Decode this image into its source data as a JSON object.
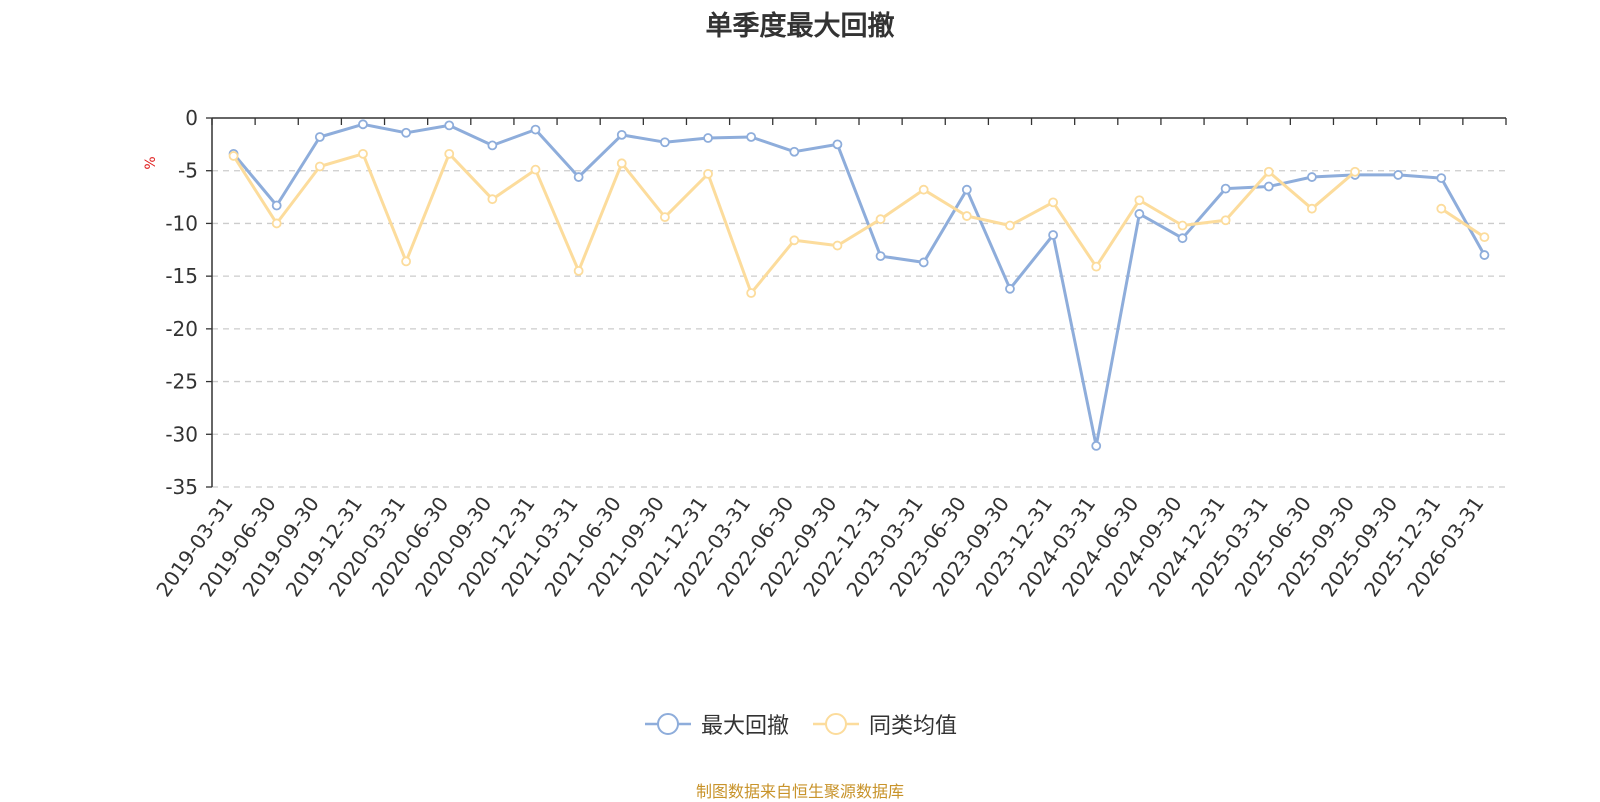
{
  "chart_data": {
    "type": "line",
    "title": "单季度最大回撤",
    "ylabel": "%",
    "ylim": [
      -35,
      0
    ],
    "yticks": [
      0,
      -5,
      -10,
      -15,
      -20,
      -25,
      -30,
      -35
    ],
    "grid": true,
    "legend_position": "bottom",
    "categories": [
      "2019-03-31",
      "2019-06-30",
      "2019-09-30",
      "2019-12-31",
      "2020-03-31",
      "2020-06-30",
      "2020-09-30",
      "2020-12-31",
      "2021-03-31",
      "2021-06-30",
      "2021-09-30",
      "2021-12-31",
      "2022-03-31",
      "2022-06-30",
      "2022-09-30",
      "2022-12-31",
      "2023-03-31",
      "2023-06-30",
      "2023-09-30",
      "2023-12-31",
      "2024-03-31",
      "2024-06-30",
      "2024-09-30",
      "2024-12-31",
      "2025-03-31",
      "2025-06-30",
      "2025-09-30",
      "2025-09-30",
      "2025-12-31",
      "2026-03-31"
    ],
    "series": [
      {
        "name": "最大回撤",
        "color": "#8eaddb",
        "values": [
          -3.4,
          -8.3,
          -1.8,
          -0.6,
          -1.4,
          -0.7,
          -2.6,
          -1.1,
          -5.6,
          -1.6,
          -2.3,
          -1.9,
          -1.8,
          -3.2,
          -2.5,
          -13.1,
          -13.7,
          -6.8,
          -16.2,
          -11.1,
          -31.1,
          -9.1,
          -11.4,
          -6.7,
          -6.5,
          -5.6,
          -5.4,
          -5.4,
          -5.7,
          -13.0
        ]
      },
      {
        "name": "同类均值",
        "color": "#fcdc9c",
        "values": [
          -3.6,
          -10.0,
          -4.6,
          -3.4,
          -13.6,
          -3.4,
          -7.7,
          -4.9,
          -14.5,
          -4.3,
          -9.4,
          -5.3,
          -16.6,
          -11.6,
          -12.1,
          -9.6,
          -6.8,
          -9.3,
          -10.2,
          -8.0,
          -14.1,
          -7.8,
          -10.2,
          -9.7,
          -5.1,
          -8.6,
          -5.1,
          null,
          -8.6,
          -11.3
        ]
      }
    ]
  },
  "source_text": "制图数据来自恒生聚源数据库"
}
